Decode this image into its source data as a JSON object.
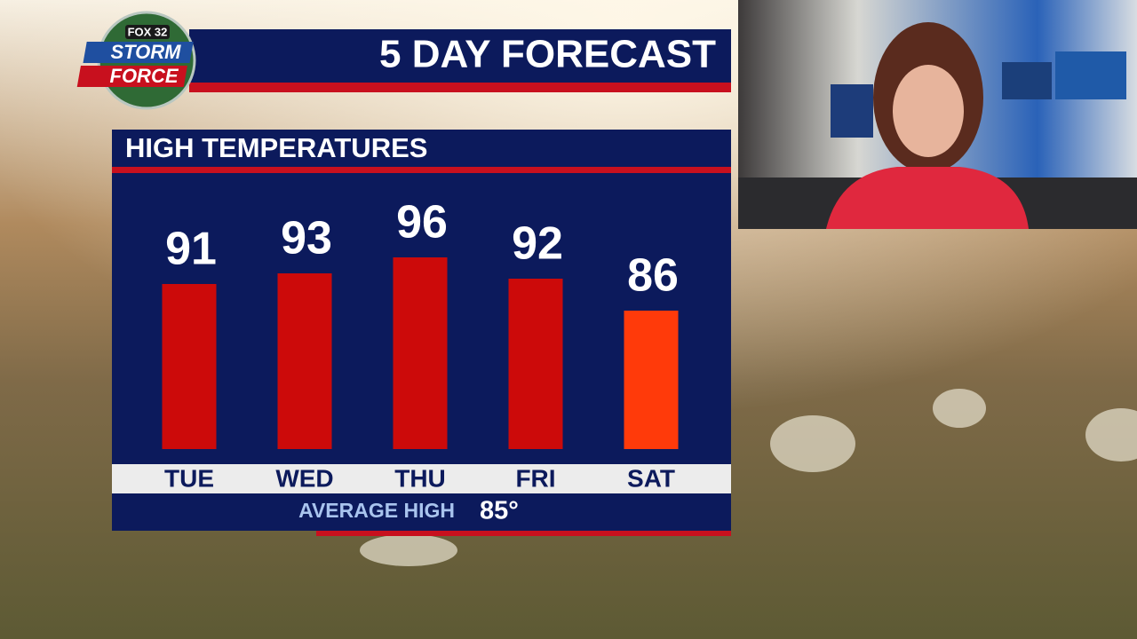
{
  "logo": {
    "top": "FOX 32",
    "line1": "STORM",
    "line2": "FORCE"
  },
  "chart_data": {
    "type": "bar",
    "title": "5 DAY FORECAST",
    "subtitle": "HIGH TEMPERATURES",
    "categories": [
      "TUE",
      "WED",
      "THU",
      "FRI",
      "SAT"
    ],
    "values": [
      91,
      93,
      96,
      92,
      86
    ],
    "colors": [
      "#cc0a0a",
      "#cc0a0a",
      "#cc0a0a",
      "#cc0a0a",
      "#ff3a0a"
    ],
    "ylim": [
      60,
      100
    ],
    "average_label": "AVERAGE HIGH",
    "average": {
      "value": 85,
      "label": "85°"
    }
  }
}
